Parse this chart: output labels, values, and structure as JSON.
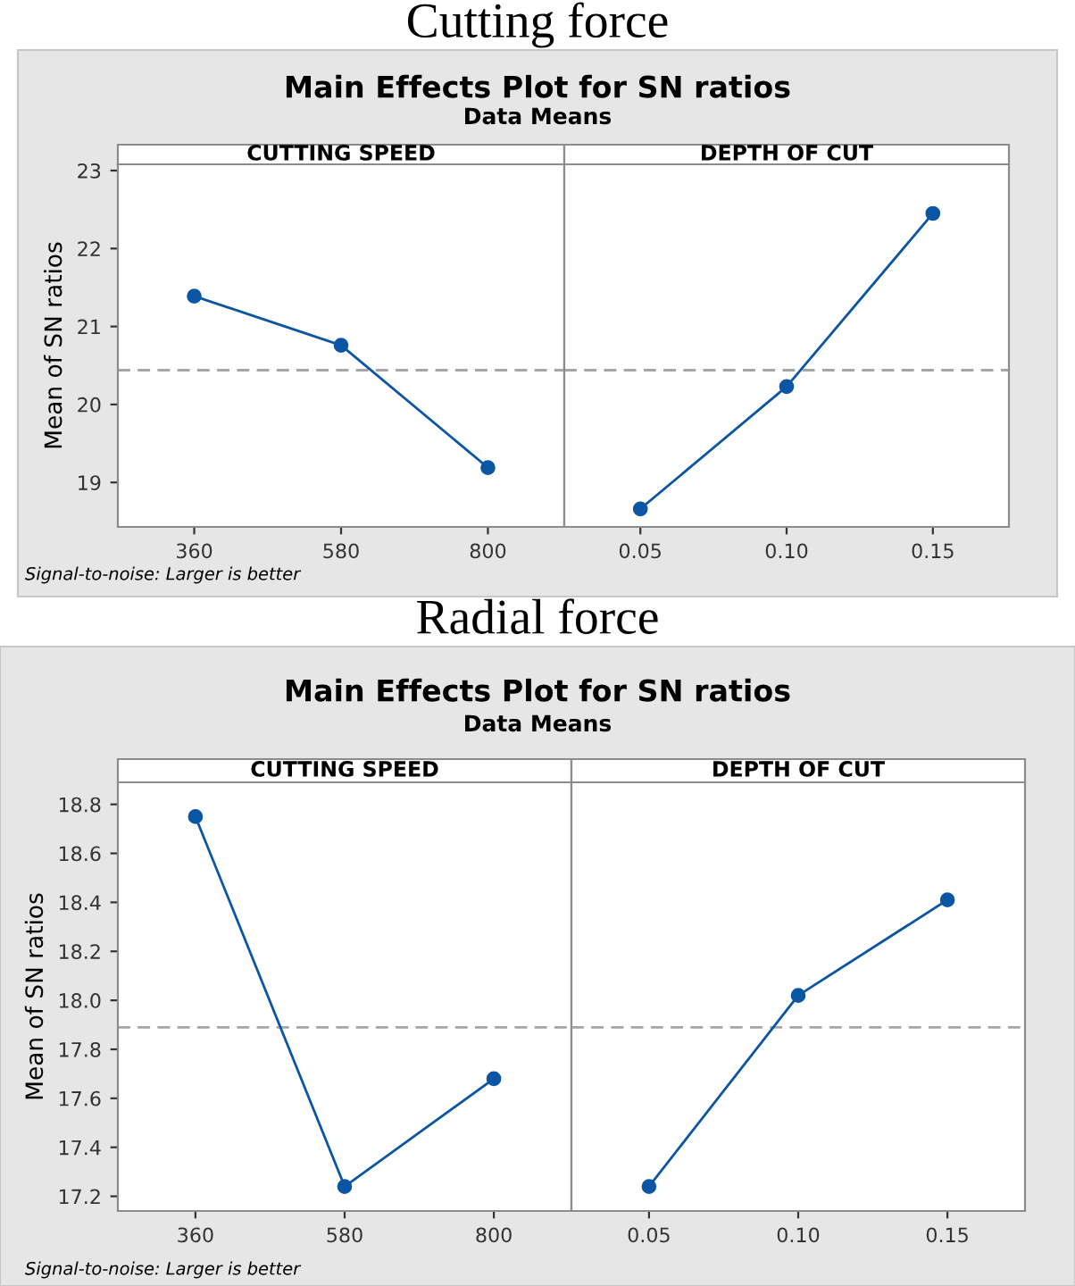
{
  "chart_data": [
    {
      "type": "line",
      "title": "CUTTING SPEED",
      "ylabel": "Mean of SN ratios",
      "annotations": [
        "Cutting force",
        "Main Effects Plot for SN ratios",
        "Data Means",
        "Signal-to-noise: Larger is better"
      ],
      "categories": [
        "360",
        "580",
        "800"
      ],
      "series": [
        {
          "color": "#0a56a5",
          "values": [
            21.39,
            20.76,
            19.19
          ]
        }
      ],
      "ylim": [
        18.43,
        23.08
      ],
      "yticks": [
        19,
        20,
        21,
        22,
        23
      ],
      "ref_lines": [
        {
          "axis": "y",
          "value": 20.44,
          "color": "#a6a6a6",
          "line_style": "dashed"
        }
      ],
      "marker": "circle",
      "grid": false,
      "legend": false
    },
    {
      "type": "line",
      "title": "DEPTH OF CUT",
      "categories": [
        "0.05",
        "0.10",
        "0.15"
      ],
      "series": [
        {
          "color": "#0a56a5",
          "values": [
            18.66,
            20.23,
            22.45
          ]
        }
      ],
      "ylim": [
        18.43,
        23.08
      ],
      "tick_labels": "x",
      "ref_lines": [
        {
          "axis": "y",
          "value": 20.44,
          "color": "#a6a6a6",
          "line_style": "dashed"
        }
      ],
      "marker": "circle",
      "grid": false,
      "legend": false
    },
    {
      "type": "line",
      "title": "CUTTING SPEED",
      "ylabel": "Mean of SN ratios",
      "annotations": [
        "Radial force",
        "Main Effects Plot for SN ratios",
        "Data Means",
        "Signal-to-noise: Larger is better"
      ],
      "categories": [
        "360",
        "580",
        "800"
      ],
      "series": [
        {
          "color": "#0a56a5",
          "values": [
            18.75,
            17.24,
            17.68
          ]
        }
      ],
      "ylim": [
        17.14,
        18.89
      ],
      "yticks": [
        17.2,
        17.4,
        17.6,
        17.8,
        {
          "value": 18,
          "label": "18.0"
        },
        18.2,
        18.4,
        18.6,
        18.8
      ],
      "ref_lines": [
        {
          "axis": "y",
          "value": 17.89,
          "color": "#a6a6a6",
          "line_style": "dashed"
        }
      ],
      "marker": "circle",
      "grid": false,
      "legend": false
    },
    {
      "type": "line",
      "title": "DEPTH OF CUT",
      "categories": [
        "0.05",
        "0.10",
        "0.15"
      ],
      "series": [
        {
          "color": "#0a56a5",
          "values": [
            17.24,
            18.02,
            18.41
          ]
        }
      ],
      "ylim": [
        17.14,
        18.89
      ],
      "tick_labels": "x",
      "ref_lines": [
        {
          "axis": "y",
          "value": 17.89,
          "color": "#a6a6a6",
          "line_style": "dashed"
        }
      ],
      "marker": "circle",
      "grid": false,
      "legend": false
    }
  ]
}
